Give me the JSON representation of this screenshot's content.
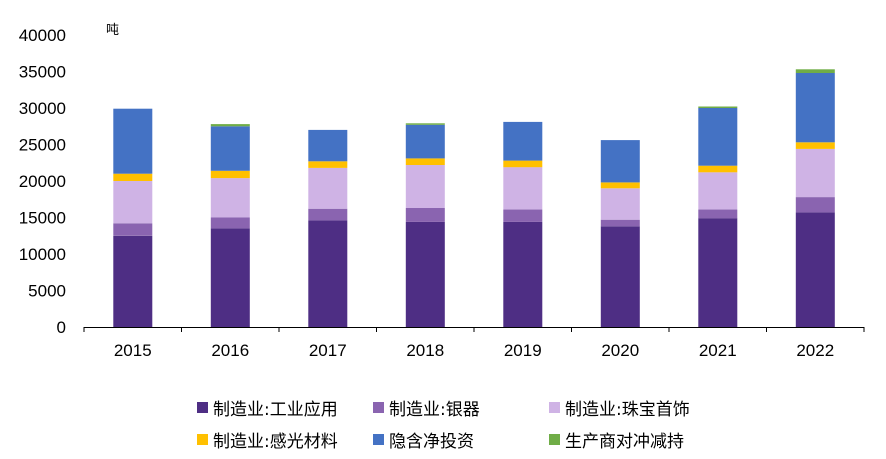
{
  "chart_data": {
    "type": "bar",
    "stacked": true,
    "unit_label": "吨",
    "categories": [
      "2015",
      "2016",
      "2017",
      "2018",
      "2019",
      "2020",
      "2021",
      "2022"
    ],
    "ylim": [
      0,
      40000
    ],
    "yticks": [
      "0",
      "5000",
      "10000",
      "15000",
      "20000",
      "25000",
      "30000",
      "35000",
      "40000"
    ],
    "series": [
      {
        "name": "制造业:工业应用",
        "color": "#4e2e84",
        "values": [
          12500,
          13500,
          14600,
          14400,
          14400,
          13800,
          14900,
          15700
        ]
      },
      {
        "name": "制造业:银器",
        "color": "#8a64b0",
        "values": [
          1700,
          1500,
          1600,
          1900,
          1700,
          900,
          1200,
          2100
        ]
      },
      {
        "name": "制造业:珠宝首饰",
        "color": "#cfb3e5",
        "values": [
          5800,
          5400,
          5600,
          5900,
          5800,
          4300,
          5100,
          6600
        ]
      },
      {
        "name": "制造业:感光材料",
        "color": "#ffc000",
        "values": [
          1000,
          1000,
          900,
          900,
          900,
          800,
          900,
          900
        ]
      },
      {
        "name": "隐含净投资",
        "color": "#4472c4",
        "values": [
          8900,
          6100,
          4300,
          4600,
          5300,
          5800,
          7900,
          9500
        ]
      },
      {
        "name": "生产商对冲减持",
        "color": "#70ad47",
        "values": [
          0,
          300,
          0,
          200,
          0,
          0,
          200,
          500
        ]
      }
    ],
    "legend_position": "bottom"
  }
}
